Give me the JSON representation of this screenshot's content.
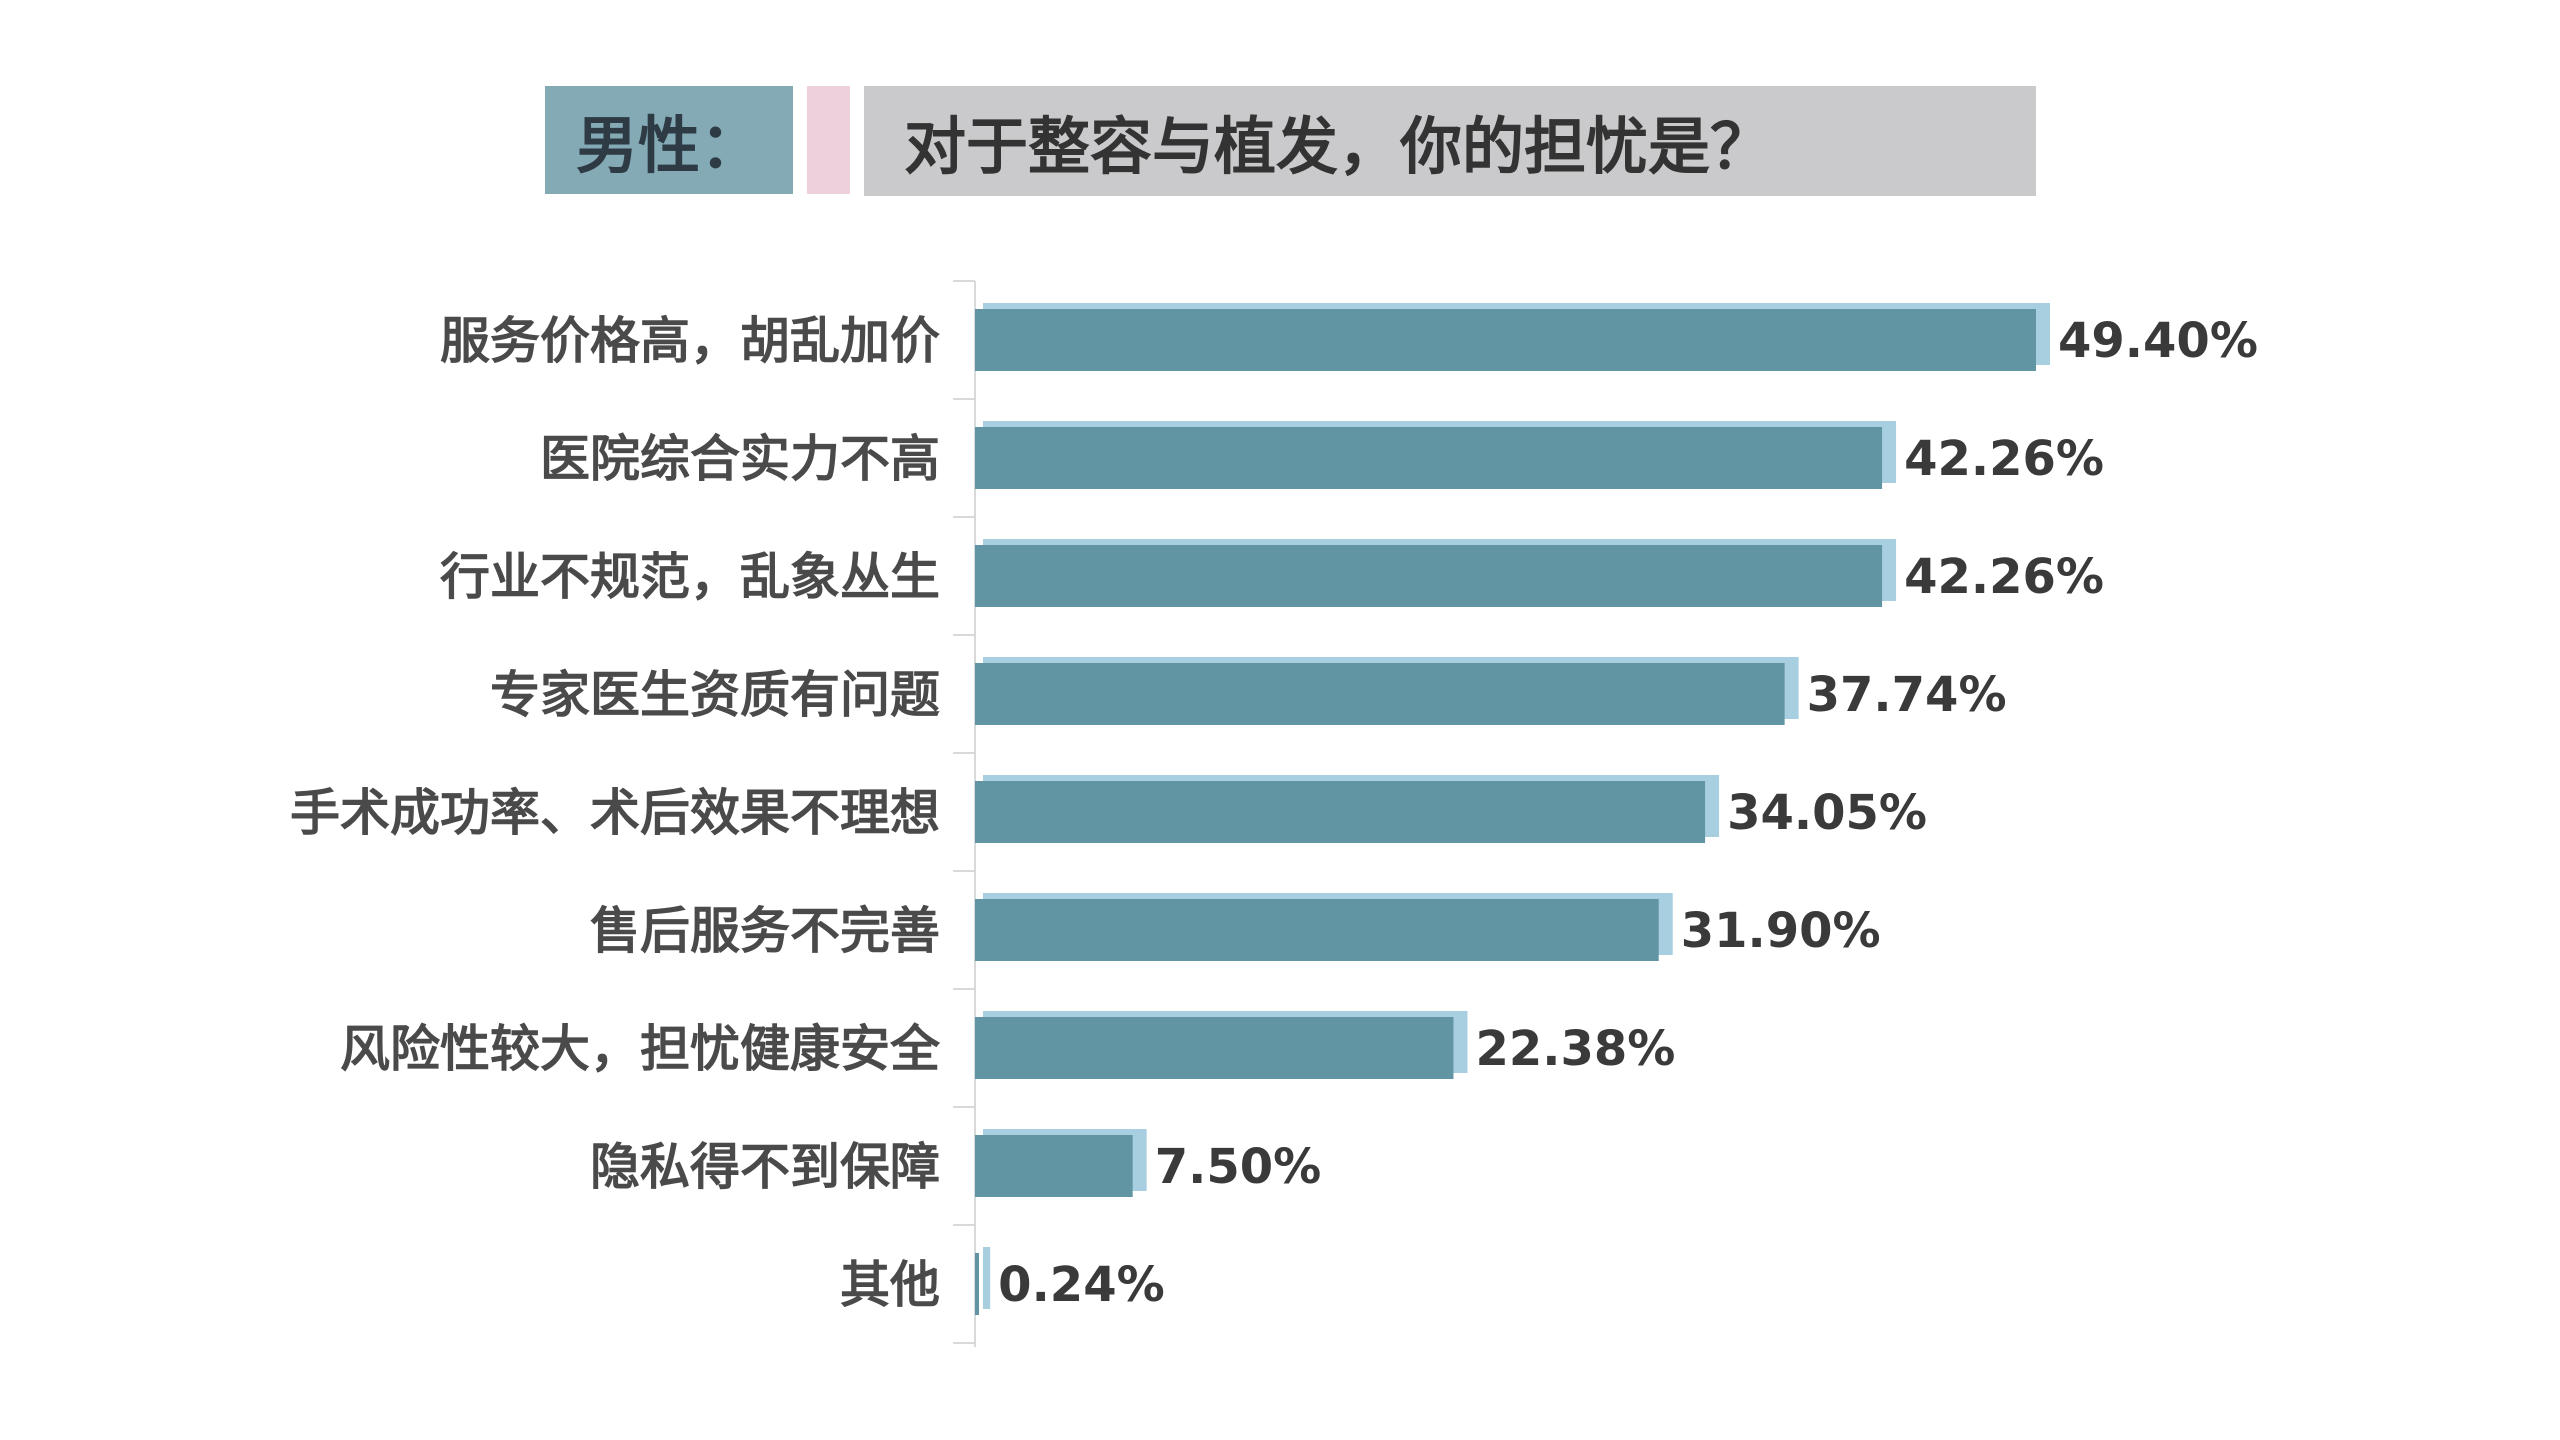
{
  "header": {
    "left_label": "男性：",
    "question": "对于整容与植发，你的担忧是？"
  },
  "colors": {
    "bar": "#6295a4",
    "bar_shadow": "#a8cfdf",
    "axis": "#d9d9d9",
    "header_left": "#84aab6",
    "header_accent": "#eed0dc",
    "header_right": "#cac9cb"
  },
  "chart_data": {
    "type": "bar",
    "orientation": "horizontal",
    "categories": [
      "服务价格高，胡乱加价",
      "医院综合实力不高",
      "行业不规范，乱象丛生",
      "专家医生资质有问题",
      "手术成功率、术后效果不理想",
      "售后服务不完善",
      "风险性较大，担忧健康安全",
      "隐私得不到保障",
      "其他"
    ],
    "values": [
      49.4,
      42.26,
      42.26,
      37.74,
      34.05,
      31.9,
      22.38,
      7.5,
      0.24
    ],
    "value_labels": [
      "49.40%",
      "42.26%",
      "42.26%",
      "37.74%",
      "34.05%",
      "31.90%",
      "22.38%",
      "7.50%",
      "0.24%"
    ],
    "xlim": [
      0,
      49.4
    ],
    "grid": false,
    "legend": "none"
  }
}
